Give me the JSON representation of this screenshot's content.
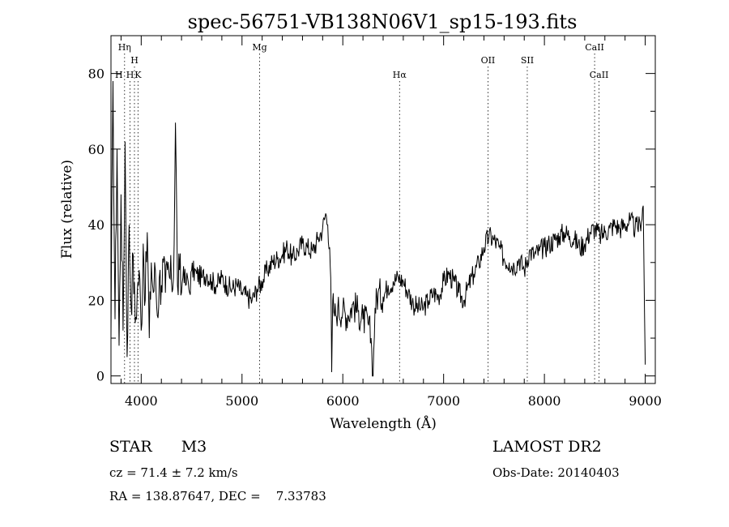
{
  "chart_data": {
    "type": "line",
    "title": "spec-56751-VB138N06V1_sp15-193.fits",
    "xlabel": "Wavelength (Å)",
    "ylabel": "Flux (relative)",
    "xlim": [
      3700,
      9100
    ],
    "ylim": [
      -2,
      90
    ],
    "x_ticks": [
      4000,
      5000,
      6000,
      7000,
      8000,
      9000
    ],
    "y_ticks": [
      0,
      20,
      40,
      60,
      80
    ],
    "grid": false,
    "line_color": "#000000",
    "series": [
      {
        "x": [
          3700,
          3720,
          3740,
          3760,
          3780,
          3800,
          3820,
          3840,
          3860,
          3880,
          3900,
          3920,
          3940,
          3960,
          3980,
          4000,
          4020,
          4040,
          4060,
          4080,
          4100,
          4120,
          4140,
          4160,
          4180,
          4200,
          4220,
          4240,
          4260,
          4280,
          4300,
          4320,
          4340,
          4360,
          4380,
          4400,
          4420,
          4440,
          4460,
          4480,
          4500,
          4550,
          4600,
          4650,
          4700,
          4750,
          4800,
          4850,
          4900,
          4950,
          5000,
          5050,
          5100,
          5150,
          5200,
          5250,
          5300,
          5350,
          5400,
          5450,
          5500,
          5550,
          5600,
          5650,
          5700,
          5750,
          5800,
          5830,
          5850,
          5870,
          5880,
          5890,
          5900,
          5910,
          5930,
          5950,
          6000,
          6050,
          6100,
          6150,
          6200,
          6250,
          6280,
          6300,
          6320,
          6350,
          6400,
          6450,
          6500,
          6550,
          6600,
          6650,
          6700,
          6750,
          6800,
          6850,
          6900,
          6950,
          7000,
          7050,
          7100,
          7150,
          7200,
          7250,
          7300,
          7350,
          7400,
          7450,
          7500,
          7550,
          7600,
          7650,
          7700,
          7750,
          7800,
          7850,
          7900,
          7950,
          8000,
          8050,
          8100,
          8150,
          8200,
          8250,
          8300,
          8350,
          8400,
          8450,
          8500,
          8550,
          8600,
          8650,
          8700,
          8750,
          8800,
          8850,
          8900,
          8950,
          8980,
          9000
        ],
        "y": [
          10,
          78,
          15,
          60,
          8,
          48,
          12,
          62,
          5,
          40,
          18,
          32,
          14,
          22,
          28,
          12,
          35,
          20,
          38,
          10,
          30,
          22,
          28,
          16,
          26,
          24,
          30,
          22,
          28,
          26,
          25,
          26,
          67,
          24,
          28,
          22,
          29,
          24,
          26,
          22,
          28,
          27,
          26,
          27,
          25,
          24,
          26,
          24,
          23,
          24,
          22,
          21,
          20,
          23,
          25,
          28,
          30,
          31,
          32,
          34,
          31,
          33,
          35,
          34,
          33,
          36,
          39,
          43,
          40,
          34,
          26,
          1,
          20,
          17,
          16,
          18,
          17,
          16,
          19,
          17,
          15,
          14,
          10,
          0,
          18,
          22,
          21,
          24,
          25,
          26,
          25,
          22,
          19,
          18,
          18,
          20,
          22,
          21,
          25,
          27,
          25,
          22,
          20,
          24,
          27,
          30,
          34,
          37,
          36,
          34,
          31,
          30,
          29,
          31,
          28,
          33,
          32,
          33,
          34,
          35,
          36,
          37,
          38,
          37,
          36,
          34,
          35,
          38,
          39,
          37,
          38,
          39,
          40,
          39,
          40,
          41,
          39,
          40,
          45,
          3
        ]
      }
    ],
    "lines": [
      {
        "label": "Hη",
        "x": 3835,
        "row": 0
      },
      {
        "label": "H",
        "x": 3889,
        "row": 2
      },
      {
        "label": "H",
        "x": 3933,
        "row": 1
      },
      {
        "label": "K",
        "x": 3968,
        "row": 2
      },
      {
        "label": "Mg",
        "x": 5175,
        "row": 0
      },
      {
        "label": "Hα",
        "x": 6563,
        "row": 2
      },
      {
        "label": "OII",
        "x": 7440,
        "row": 1
      },
      {
        "label": "SII",
        "x": 7830,
        "row": 1
      },
      {
        "label": "CaII",
        "x": 8498,
        "row": 0
      },
      {
        "label": "CaII",
        "x": 8542,
        "row": 2
      }
    ],
    "edge_label": "H"
  },
  "footer": {
    "object": "STAR",
    "subclass": "M3",
    "survey": "LAMOST DR2",
    "cz": "cz = 71.4 ± 7.2 km/s",
    "obs_date": "Obs-Date: 20140403",
    "radec": "RA = 138.87647, DEC =    7.33783"
  }
}
